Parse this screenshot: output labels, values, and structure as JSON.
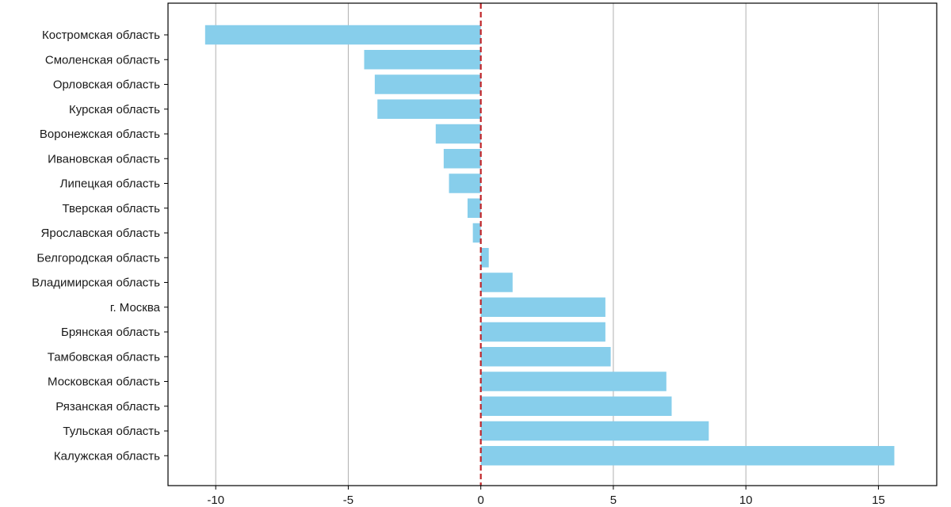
{
  "chart_data": {
    "type": "bar",
    "orientation": "horizontal",
    "title": "",
    "xlabel": "",
    "ylabel": "",
    "categories": [
      "Костромская область",
      "Смоленская область",
      "Орловская область",
      "Курская область",
      "Воронежская область",
      "Ивановская область",
      "Липецкая область",
      "Тверская область",
      "Ярославская область",
      "Белгородская область",
      "Владимирская область",
      "г. Москва",
      "Брянская область",
      "Тамбовская область",
      "Московская область",
      "Рязанская область",
      "Тульская область",
      "Калужская область"
    ],
    "values": [
      -10.4,
      -4.4,
      -4.0,
      -3.9,
      -1.7,
      -1.4,
      -1.2,
      -0.5,
      -0.3,
      0.3,
      1.2,
      4.7,
      4.7,
      4.9,
      7.0,
      7.2,
      8.6,
      15.6
    ],
    "xlim": [
      -11.8,
      17.2
    ],
    "xticks": [
      -10,
      -5,
      0,
      5,
      10,
      15
    ],
    "xtick_labels": [
      "-10",
      "-5",
      "0",
      "5",
      "10",
      "15"
    ],
    "grid": "vertical",
    "reference_line": {
      "x": 0,
      "style": "dashed"
    },
    "legend": "none",
    "colors": {
      "bar": "#87ceeb",
      "reference_line": "#c0262a",
      "grid": "#b0b0b0",
      "axis": "#000000"
    }
  }
}
